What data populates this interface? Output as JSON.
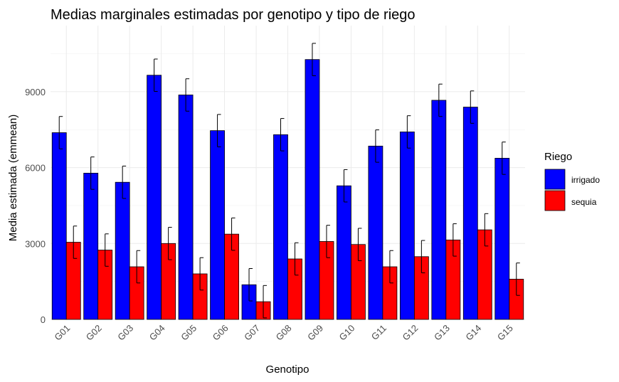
{
  "chart_data": {
    "type": "bar",
    "title": "Medias marginales estimadas por genotipo y tipo de riego",
    "xlabel": "Genotipo",
    "ylabel": "Media estimada (emmean)",
    "ylim": [
      0,
      11000
    ],
    "yticks": [
      0,
      3000,
      6000,
      9000
    ],
    "grid": true,
    "legend": {
      "title": "Riego",
      "position": "right"
    },
    "categories": [
      "G01",
      "G02",
      "G03",
      "G04",
      "G05",
      "G06",
      "G07",
      "G08",
      "G09",
      "G10",
      "G11",
      "G12",
      "G13",
      "G14",
      "G15"
    ],
    "series": [
      {
        "name": "irrigado",
        "color": "#0000ff",
        "values": [
          7380,
          5780,
          5420,
          9650,
          8870,
          7460,
          1370,
          7300,
          10270,
          5280,
          6850,
          7410,
          8660,
          8390,
          6370
        ],
        "lower": [
          6740,
          5140,
          4780,
          9010,
          8230,
          6820,
          730,
          6660,
          9630,
          4640,
          6210,
          6770,
          8020,
          7750,
          5730
        ],
        "upper": [
          8020,
          6420,
          6060,
          10290,
          9510,
          8100,
          2010,
          7940,
          10910,
          5920,
          7490,
          8050,
          9300,
          9030,
          7010
        ]
      },
      {
        "name": "sequia",
        "color": "#ff0000",
        "values": [
          3050,
          2740,
          2080,
          3000,
          1800,
          3370,
          700,
          2390,
          3080,
          2960,
          2080,
          2480,
          3140,
          3540,
          1590
        ],
        "lower": [
          2410,
          2100,
          1440,
          2360,
          1160,
          2730,
          60,
          1750,
          2440,
          2320,
          1440,
          1840,
          2500,
          2900,
          950
        ],
        "upper": [
          3690,
          3380,
          2720,
          3640,
          2440,
          4010,
          1340,
          3030,
          3720,
          3600,
          2720,
          3120,
          3780,
          4180,
          2230
        ]
      }
    ]
  }
}
